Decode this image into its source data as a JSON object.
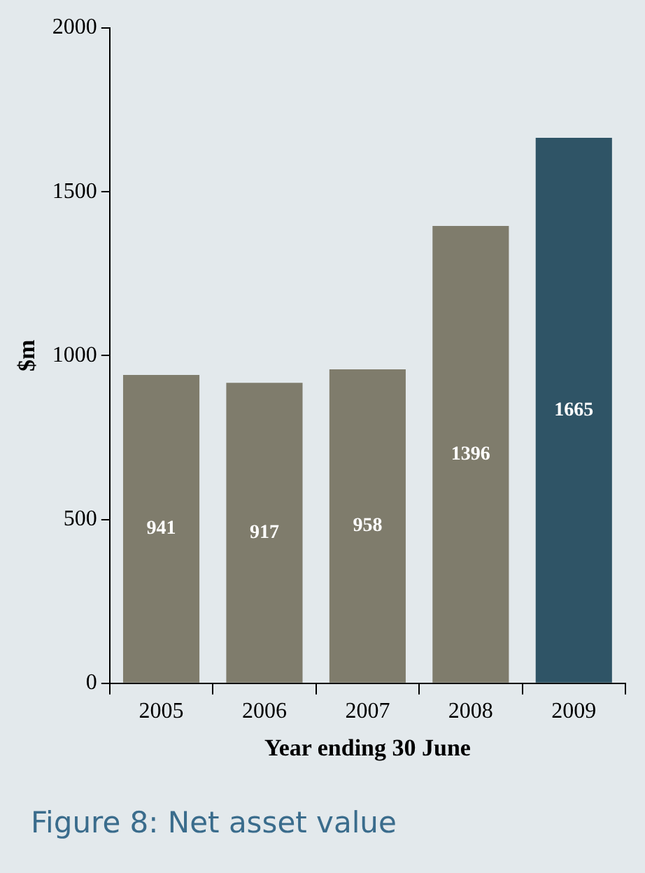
{
  "chart_data": {
    "type": "bar",
    "title": "Figure 8: Net asset value",
    "xlabel": "Year ending 30 June",
    "ylabel": "$m",
    "categories": [
      "2005",
      "2006",
      "2007",
      "2008",
      "2009"
    ],
    "values": [
      941,
      917,
      958,
      1396,
      1665
    ],
    "colors": [
      "#7f7c6c",
      "#7f7c6c",
      "#7f7c6c",
      "#7f7c6c",
      "#2f5466"
    ],
    "ylim": [
      0,
      2000
    ],
    "yticks": [
      0,
      500,
      1000,
      1500,
      2000
    ],
    "grid": false,
    "legend": false,
    "data_labels": true
  }
}
